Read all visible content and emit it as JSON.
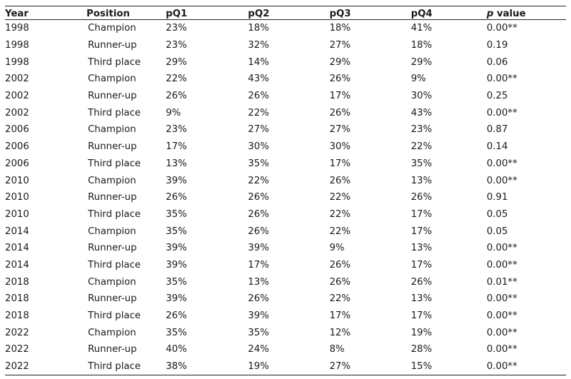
{
  "table": {
    "headers": {
      "year": "Year",
      "position": "Position",
      "pq1": "pQ1",
      "pq2": "pQ2",
      "pq3": "pQ3",
      "pq4": "pQ4",
      "p_italic": "p",
      "p_rest": " value"
    },
    "rows": [
      [
        "1998",
        "Champion",
        "23%",
        "18%",
        "18%",
        "41%",
        "0.00**"
      ],
      [
        "1998",
        "Runner-up",
        "23%",
        "32%",
        "27%",
        "18%",
        "0.19"
      ],
      [
        "1998",
        "Third place",
        "29%",
        "14%",
        "29%",
        "29%",
        "0.06"
      ],
      [
        "2002",
        "Champion",
        "22%",
        "43%",
        "26%",
        "9%",
        "0.00**"
      ],
      [
        "2002",
        "Runner-up",
        "26%",
        "26%",
        "17%",
        "30%",
        "0.25"
      ],
      [
        "2002",
        "Third place",
        "9%",
        "22%",
        "26%",
        "43%",
        "0.00**"
      ],
      [
        "2006",
        "Champion",
        "23%",
        "27%",
        "27%",
        "23%",
        "0.87"
      ],
      [
        "2006",
        "Runner-up",
        "17%",
        "30%",
        "30%",
        "22%",
        "0.14"
      ],
      [
        "2006",
        "Third place",
        "13%",
        "35%",
        "17%",
        "35%",
        "0.00**"
      ],
      [
        "2010",
        "Champion",
        "39%",
        "22%",
        "26%",
        "13%",
        "0.00**"
      ],
      [
        "2010",
        "Runner-up",
        "26%",
        "26%",
        "22%",
        "26%",
        "0.91"
      ],
      [
        "2010",
        "Third place",
        "35%",
        "26%",
        "22%",
        "17%",
        "0.05"
      ],
      [
        "2014",
        "Champion",
        "35%",
        "26%",
        "22%",
        "17%",
        "0.05"
      ],
      [
        "2014",
        "Runner-up",
        "39%",
        "39%",
        "9%",
        "13%",
        "0.00**"
      ],
      [
        "2014",
        "Third place",
        "39%",
        "17%",
        "26%",
        "17%",
        "0.00**"
      ],
      [
        "2018",
        "Champion",
        "35%",
        "13%",
        "26%",
        "26%",
        "0.01**"
      ],
      [
        "2018",
        "Runner-up",
        "39%",
        "26%",
        "22%",
        "13%",
        "0.00**"
      ],
      [
        "2018",
        "Third place",
        "26%",
        "39%",
        "17%",
        "17%",
        "0.00**"
      ],
      [
        "2022",
        "Champion",
        "35%",
        "35%",
        "12%",
        "19%",
        "0.00**"
      ],
      [
        "2022",
        "Runner-up",
        "40%",
        "24%",
        "8%",
        "28%",
        "0.00**"
      ],
      [
        "2022",
        "Third place",
        "38%",
        "19%",
        "27%",
        "15%",
        "0.00**"
      ]
    ]
  }
}
